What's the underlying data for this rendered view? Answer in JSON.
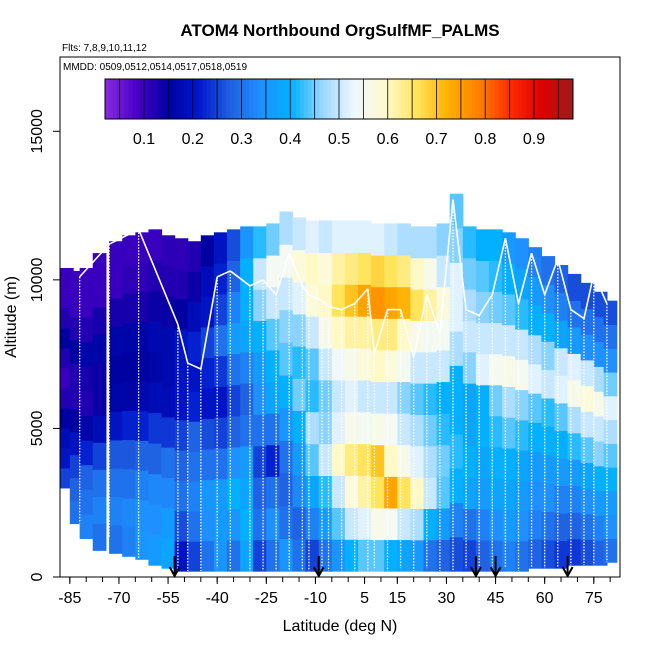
{
  "chart_data": {
    "type": "heatmap",
    "title": "ATOM4 Northbound OrgSulfMF_PALMS",
    "flights_label": "Flts: 7,8,9,10,11,12",
    "dates_label": "MMDD: 0509,0512,0514,0517,0518,0519",
    "xlabel": "Latitude (deg N)",
    "ylabel": "Altitude (m)",
    "xlim": [
      -88,
      83
    ],
    "ylim": [
      0,
      17500
    ],
    "x_ticks": [
      -85,
      -70,
      -55,
      -40,
      -25,
      -10,
      5,
      15,
      30,
      45,
      60,
      75
    ],
    "x_tick_labels": [
      "-85",
      "-70",
      "-55",
      "-40",
      "-25",
      "-10",
      "5",
      "15",
      "30",
      "45",
      "60",
      "75"
    ],
    "y_ticks": [
      0,
      5000,
      10000,
      15000
    ],
    "y_tick_labels": [
      "0",
      "5000",
      "10000",
      "15000"
    ],
    "colorbar": {
      "range": [
        0.02,
        0.98
      ],
      "ticks": [
        0.1,
        0.2,
        0.3,
        0.4,
        0.5,
        0.6,
        0.7,
        0.8,
        0.9
      ],
      "tick_labels": [
        "0.1",
        "0.2",
        "0.3",
        "0.4",
        "0.5",
        "0.6",
        "0.7",
        "0.8",
        "0.9"
      ],
      "colors": [
        "#8a2be2",
        "#4b00c8",
        "#0000a0",
        "#0018cc",
        "#1f5fe0",
        "#1e90ff",
        "#00b2ff",
        "#9fd8ff",
        "#f0f8ff",
        "#fffacd",
        "#ffe45c",
        "#ffb000",
        "#ff7f00",
        "#ff2a00",
        "#dd0000",
        "#9b1c1c"
      ]
    },
    "arrow_latitudes": [
      -53,
      -9,
      39,
      45,
      67
    ],
    "columns": [
      {
        "lat": -86,
        "top": 10400,
        "base": 3000,
        "vals": [
          0.25,
          0.2,
          0.18,
          0.15,
          0.12,
          0.1,
          0.12,
          0.15,
          0.12,
          0.1,
          0.1
        ]
      },
      {
        "lat": -83,
        "top": 10300,
        "base": 1800,
        "vals": [
          0.3,
          0.28,
          0.25,
          0.2,
          0.15,
          0.12,
          0.12,
          0.15,
          0.12,
          0.1,
          0.1
        ]
      },
      {
        "lat": -80,
        "top": 10400,
        "base": 1300,
        "vals": [
          0.32,
          0.3,
          0.28,
          0.22,
          0.16,
          0.12,
          0.13,
          0.16,
          0.12,
          0.1,
          0.1
        ]
      },
      {
        "lat": -76,
        "top": 10900,
        "base": 900,
        "vals": [
          0.3,
          0.32,
          0.3,
          0.25,
          0.18,
          0.14,
          0.14,
          0.16,
          0.13,
          0.1,
          0.1
        ]
      },
      {
        "lat": -71,
        "top": 11300,
        "base": 800,
        "vals": [
          0.3,
          0.32,
          0.3,
          0.27,
          0.2,
          0.16,
          0.15,
          0.16,
          0.13,
          0.1,
          0.1
        ]
      },
      {
        "lat": -67,
        "top": 11500,
        "base": 700,
        "vals": [
          0.32,
          0.33,
          0.3,
          0.27,
          0.22,
          0.16,
          0.15,
          0.16,
          0.13,
          0.11,
          0.1
        ]
      },
      {
        "lat": -63,
        "top": 11600,
        "base": 600,
        "vals": [
          0.35,
          0.34,
          0.32,
          0.28,
          0.22,
          0.17,
          0.15,
          0.16,
          0.13,
          0.11,
          0.1
        ]
      },
      {
        "lat": -59,
        "top": 11700,
        "base": 400,
        "vals": [
          0.36,
          0.34,
          0.33,
          0.28,
          0.24,
          0.18,
          0.16,
          0.17,
          0.14,
          0.12,
          0.1
        ]
      },
      {
        "lat": -55,
        "top": 11500,
        "base": 300,
        "vals": [
          0.38,
          0.36,
          0.33,
          0.3,
          0.24,
          0.18,
          0.17,
          0.17,
          0.14,
          0.12,
          0.11
        ]
      },
      {
        "lat": -51,
        "top": 11400,
        "base": 200,
        "vals": [
          0.2,
          0.26,
          0.3,
          0.28,
          0.25,
          0.2,
          0.2,
          0.2,
          0.15,
          0.12,
          0.11
        ]
      },
      {
        "lat": -47,
        "top": 11300,
        "base": 200,
        "vals": [
          0.25,
          0.3,
          0.32,
          0.3,
          0.28,
          0.22,
          0.2,
          0.22,
          0.18,
          0.14,
          0.12
        ]
      },
      {
        "lat": -43,
        "top": 11500,
        "base": 200,
        "vals": [
          0.3,
          0.34,
          0.35,
          0.3,
          0.26,
          0.2,
          0.22,
          0.25,
          0.2,
          0.18,
          0.15
        ]
      },
      {
        "lat": -39,
        "top": 11600,
        "base": 200,
        "vals": [
          0.35,
          0.36,
          0.36,
          0.3,
          0.25,
          0.2,
          0.24,
          0.3,
          0.25,
          0.22,
          0.2
        ]
      },
      {
        "lat": -35,
        "top": 11700,
        "base": 200,
        "vals": [
          0.3,
          0.35,
          0.4,
          0.34,
          0.28,
          0.25,
          0.3,
          0.36,
          0.32,
          0.28,
          0.26
        ]
      },
      {
        "lat": -31,
        "top": 11800,
        "base": 200,
        "vals": [
          0.38,
          0.4,
          0.38,
          0.36,
          0.3,
          0.28,
          0.32,
          0.38,
          0.4,
          0.4,
          0.35
        ]
      },
      {
        "lat": -27,
        "top": 11800,
        "base": 200,
        "vals": [
          0.25,
          0.3,
          0.28,
          0.25,
          0.3,
          0.34,
          0.36,
          0.4,
          0.46,
          0.5,
          0.42
        ]
      },
      {
        "lat": -23,
        "top": 11900,
        "base": 200,
        "vals": [
          0.3,
          0.34,
          0.3,
          0.22,
          0.3,
          0.38,
          0.4,
          0.44,
          0.5,
          0.55,
          0.45
        ]
      },
      {
        "lat": -19,
        "top": 12300,
        "base": 200,
        "vals": [
          0.35,
          0.3,
          0.28,
          0.3,
          0.35,
          0.4,
          0.44,
          0.46,
          0.5,
          0.55,
          0.48
        ]
      },
      {
        "lat": -15,
        "top": 12100,
        "base": 200,
        "vals": [
          0.3,
          0.28,
          0.33,
          0.36,
          0.4,
          0.45,
          0.42,
          0.46,
          0.52,
          0.58,
          0.5
        ]
      },
      {
        "lat": -11,
        "top": 12000,
        "base": 200,
        "vals": [
          0.25,
          0.32,
          0.38,
          0.44,
          0.48,
          0.42,
          0.44,
          0.5,
          0.58,
          0.6,
          0.52
        ]
      },
      {
        "lat": -7,
        "top": 12000,
        "base": 200,
        "vals": [
          0.3,
          0.36,
          0.42,
          0.5,
          0.46,
          0.45,
          0.5,
          0.56,
          0.6,
          0.58,
          0.5
        ]
      },
      {
        "lat": -3,
        "top": 12000,
        "base": 200,
        "vals": [
          0.35,
          0.44,
          0.5,
          0.6,
          0.52,
          0.5,
          0.54,
          0.6,
          0.66,
          0.62,
          0.52
        ]
      },
      {
        "lat": 1,
        "top": 12000,
        "base": 200,
        "vals": [
          0.4,
          0.5,
          0.58,
          0.64,
          0.56,
          0.52,
          0.56,
          0.62,
          0.7,
          0.64,
          0.52
        ]
      },
      {
        "lat": 5,
        "top": 12000,
        "base": 200,
        "vals": [
          0.44,
          0.52,
          0.62,
          0.66,
          0.55,
          0.5,
          0.58,
          0.62,
          0.74,
          0.66,
          0.52
        ]
      },
      {
        "lat": 9,
        "top": 11900,
        "base": 200,
        "vals": [
          0.44,
          0.56,
          0.66,
          0.7,
          0.56,
          0.5,
          0.6,
          0.64,
          0.76,
          0.68,
          0.52
        ]
      },
      {
        "lat": 13,
        "top": 11900,
        "base": 200,
        "vals": [
          0.4,
          0.55,
          0.74,
          0.6,
          0.55,
          0.5,
          0.58,
          0.64,
          0.74,
          0.66,
          0.5
        ]
      },
      {
        "lat": 17,
        "top": 11900,
        "base": 200,
        "vals": [
          0.38,
          0.5,
          0.66,
          0.56,
          0.5,
          0.46,
          0.55,
          0.6,
          0.72,
          0.64,
          0.48
        ]
      },
      {
        "lat": 21,
        "top": 11800,
        "base": 200,
        "vals": [
          0.36,
          0.48,
          0.6,
          0.52,
          0.48,
          0.44,
          0.5,
          0.56,
          0.66,
          0.6,
          0.48
        ]
      },
      {
        "lat": 25,
        "top": 11800,
        "base": 200,
        "vals": [
          0.3,
          0.4,
          0.5,
          0.48,
          0.45,
          0.42,
          0.5,
          0.55,
          0.62,
          0.56,
          0.48
        ]
      },
      {
        "lat": 29,
        "top": 11900,
        "base": 200,
        "vals": [
          0.28,
          0.36,
          0.44,
          0.45,
          0.42,
          0.4,
          0.5,
          0.55,
          0.58,
          0.5,
          0.46
        ]
      },
      {
        "lat": 33,
        "top": 12900,
        "base": 200,
        "vals": [
          0.26,
          0.32,
          0.4,
          0.42,
          0.4,
          0.4,
          0.48,
          0.52,
          0.52,
          0.46,
          0.44
        ]
      },
      {
        "lat": 37,
        "top": 11800,
        "base": 200,
        "vals": [
          0.25,
          0.3,
          0.38,
          0.4,
          0.38,
          0.38,
          0.46,
          0.5,
          0.48,
          0.45,
          0.42
        ]
      },
      {
        "lat": 41,
        "top": 11700,
        "base": 200,
        "vals": [
          0.28,
          0.32,
          0.36,
          0.38,
          0.4,
          0.4,
          0.52,
          0.5,
          0.46,
          0.44,
          0.4
        ]
      },
      {
        "lat": 45,
        "top": 11700,
        "base": 200,
        "vals": [
          0.3,
          0.34,
          0.38,
          0.4,
          0.42,
          0.45,
          0.55,
          0.5,
          0.45,
          0.42,
          0.4
        ]
      },
      {
        "lat": 49,
        "top": 11600,
        "base": 200,
        "vals": [
          0.32,
          0.36,
          0.38,
          0.4,
          0.44,
          0.48,
          0.56,
          0.5,
          0.44,
          0.4,
          0.36
        ]
      },
      {
        "lat": 53,
        "top": 11400,
        "base": 200,
        "vals": [
          0.3,
          0.34,
          0.36,
          0.38,
          0.42,
          0.46,
          0.55,
          0.5,
          0.42,
          0.38,
          0.34
        ]
      },
      {
        "lat": 57,
        "top": 11100,
        "base": 300,
        "vals": [
          0.28,
          0.32,
          0.34,
          0.36,
          0.4,
          0.44,
          0.52,
          0.48,
          0.4,
          0.36,
          0.32
        ]
      },
      {
        "lat": 61,
        "top": 10800,
        "base": 300,
        "vals": [
          0.26,
          0.3,
          0.34,
          0.36,
          0.4,
          0.42,
          0.5,
          0.46,
          0.4,
          0.34,
          0.3
        ]
      },
      {
        "lat": 65,
        "top": 10500,
        "base": 300,
        "vals": [
          0.24,
          0.28,
          0.32,
          0.36,
          0.4,
          0.44,
          0.52,
          0.5,
          0.38,
          0.32,
          0.28
        ]
      },
      {
        "lat": 69,
        "top": 10200,
        "base": 400,
        "vals": [
          0.24,
          0.28,
          0.32,
          0.36,
          0.42,
          0.48,
          0.56,
          0.52,
          0.36,
          0.3,
          0.26
        ]
      },
      {
        "lat": 73,
        "top": 9900,
        "base": 400,
        "vals": [
          0.26,
          0.3,
          0.34,
          0.38,
          0.44,
          0.5,
          0.58,
          0.5,
          0.34,
          0.3,
          0.26
        ]
      },
      {
        "lat": 77,
        "top": 9600,
        "base": 400,
        "vals": [
          0.28,
          0.32,
          0.36,
          0.4,
          0.46,
          0.5,
          0.56,
          0.48,
          0.34,
          0.3,
          0.26
        ]
      },
      {
        "lat": 80,
        "top": 9300,
        "base": 500,
        "vals": [
          0.3,
          0.34,
          0.36,
          0.4,
          0.44,
          0.48,
          0.52,
          0.45,
          0.34,
          0.3,
          0.26
        ]
      }
    ],
    "profiles": [
      {
        "lat": -82,
        "top": 10100,
        "base": 1800
      },
      {
        "lat": -73,
        "top": 11200,
        "base": 1300
      },
      {
        "lat": -64,
        "top": 11700,
        "base": 600
      },
      {
        "lat": -52,
        "top": 8500,
        "base": 200
      },
      {
        "lat": -49,
        "top": 7200,
        "base": 200
      },
      {
        "lat": -45,
        "top": 7000,
        "base": 200
      },
      {
        "lat": -40,
        "top": 10100,
        "base": 300
      },
      {
        "lat": -36,
        "top": 10300,
        "base": 200
      },
      {
        "lat": -30,
        "top": 9800,
        "base": 200
      },
      {
        "lat": -26,
        "top": 10000,
        "base": 200
      },
      {
        "lat": -22,
        "top": 9500,
        "base": 200
      },
      {
        "lat": -18,
        "top": 10900,
        "base": 200
      },
      {
        "lat": -14,
        "top": 9800,
        "base": 200
      },
      {
        "lat": -12,
        "top": 9500,
        "base": 200
      },
      {
        "lat": -8,
        "top": 9300,
        "base": 200
      },
      {
        "lat": -6,
        "top": 9100,
        "base": 200
      },
      {
        "lat": -2,
        "top": 9000,
        "base": 200
      },
      {
        "lat": 2,
        "top": 9200,
        "base": 200
      },
      {
        "lat": 6,
        "top": 9700,
        "base": 200
      },
      {
        "lat": 8,
        "top": 7500,
        "base": 300
      },
      {
        "lat": 12,
        "top": 9000,
        "base": 200
      },
      {
        "lat": 16,
        "top": 9000,
        "base": 300
      },
      {
        "lat": 20,
        "top": 7400,
        "base": 200
      },
      {
        "lat": 24,
        "top": 9500,
        "base": 300
      },
      {
        "lat": 28,
        "top": 8200,
        "base": 200
      },
      {
        "lat": 32,
        "top": 12700,
        "base": 200
      },
      {
        "lat": 36,
        "top": 9000,
        "base": 300
      },
      {
        "lat": 40,
        "top": 8800,
        "base": 200
      },
      {
        "lat": 44,
        "top": 9500,
        "base": 300
      },
      {
        "lat": 48,
        "top": 11400,
        "base": 300
      },
      {
        "lat": 52,
        "top": 9200,
        "base": 200
      },
      {
        "lat": 56,
        "top": 10900,
        "base": 300
      },
      {
        "lat": 60,
        "top": 9500,
        "base": 300
      },
      {
        "lat": 64,
        "top": 10700,
        "base": 300
      },
      {
        "lat": 68,
        "top": 9000,
        "base": 400
      },
      {
        "lat": 72,
        "top": 8700,
        "base": 400
      },
      {
        "lat": 75,
        "top": 10200,
        "base": 400
      },
      {
        "lat": 79,
        "top": 9200,
        "base": 500
      }
    ]
  }
}
